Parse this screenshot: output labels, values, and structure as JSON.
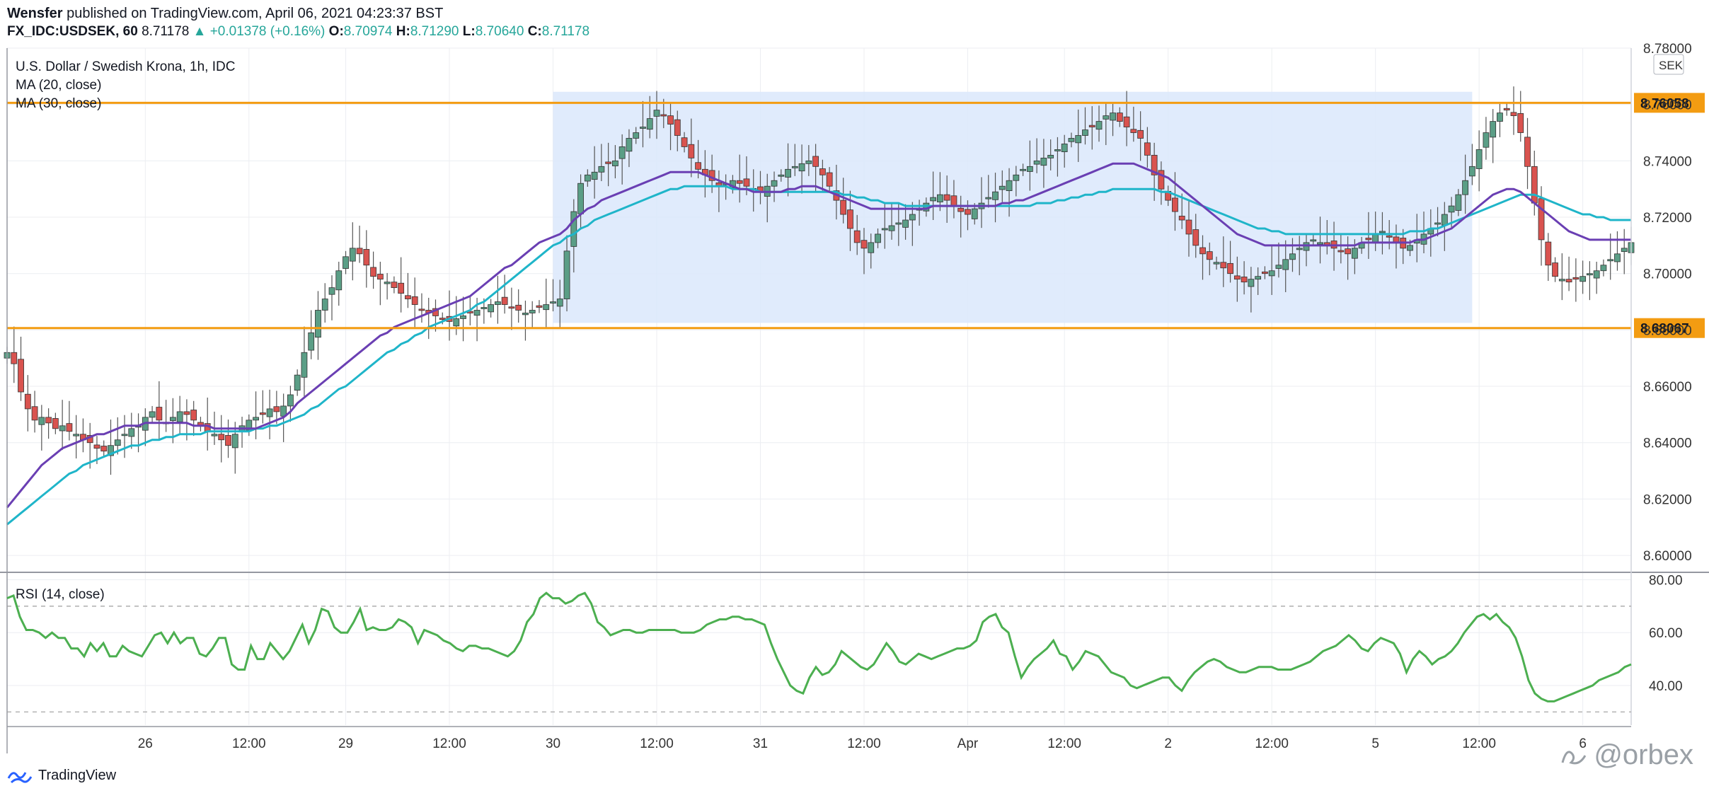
{
  "header": {
    "publisher": "Wensfer",
    "published_text": "published on TradingView.com, April 06, 2021 04:23:37 BST",
    "symbol": "FX_IDC:USDSEK, 60",
    "last": "8.71178",
    "change": "▲ +0.01378 (+0.16%)",
    "o_label": "O:",
    "o": "8.70974",
    "h_label": "H:",
    "h": "8.71290",
    "l_label": "L:",
    "l": "8.70640",
    "c_label": "C:",
    "c": "8.71178"
  },
  "footer": {
    "brand": "TradingView",
    "brand_icon": "tradingview-logo-icon",
    "watermark": "@orbex",
    "watermark_icon": "signature-icon"
  },
  "chart_data": [
    {
      "type": "candlestick",
      "title": "U.S. Dollar / Swedish Krona, 1h, IDC",
      "indicators": [
        "MA (20, close)",
        "MA (30, close)"
      ],
      "currency": "SEK",
      "ylim": [
        8.595,
        8.78
      ],
      "y_ticks": [
        "8.60000",
        "8.62000",
        "8.64000",
        "8.66000",
        "8.68000",
        "8.70000",
        "8.72000",
        "8.74000",
        "8.76000",
        "8.78000"
      ],
      "x_ticks": [
        "26",
        "12:00",
        "29",
        "12:00",
        "30",
        "12:00",
        "31",
        "12:00",
        "Apr",
        "12:00",
        "2",
        "12:00",
        "5",
        "12:00",
        "6"
      ],
      "horizontal_levels": [
        8.76058,
        8.68067
      ],
      "level_labels": [
        "8.76058",
        "8.68067"
      ],
      "range_box": {
        "x_start": 79,
        "x_end": 212,
        "y_low": 8.6825,
        "y_high": 8.7645
      },
      "close": [
        8.672,
        8.668,
        8.658,
        8.652,
        8.648,
        8.649,
        8.647,
        8.645,
        8.646,
        8.644,
        8.643,
        8.641,
        8.64,
        8.638,
        8.637,
        8.639,
        8.641,
        8.643,
        8.645,
        8.646,
        8.649,
        8.651,
        8.648,
        8.647,
        8.649,
        8.651,
        8.65,
        8.648,
        8.646,
        8.644,
        8.643,
        8.641,
        8.639,
        8.643,
        8.646,
        8.648,
        8.649,
        8.65,
        8.652,
        8.651,
        8.653,
        8.657,
        8.664,
        8.672,
        8.679,
        8.687,
        8.691,
        8.695,
        8.701,
        8.706,
        8.709,
        8.707,
        8.703,
        8.699,
        8.698,
        8.697,
        8.695,
        8.693,
        8.691,
        8.689,
        8.687,
        8.686,
        8.685,
        8.684,
        8.683,
        8.684,
        8.685,
        8.686,
        8.687,
        8.688,
        8.689,
        8.69,
        8.689,
        8.688,
        8.687,
        8.686,
        8.687,
        8.688,
        8.689,
        8.69,
        8.691,
        8.708,
        8.722,
        8.732,
        8.735,
        8.736,
        8.738,
        8.739,
        8.74,
        8.745,
        8.748,
        8.75,
        8.752,
        8.755,
        8.758,
        8.756,
        8.753,
        8.749,
        8.745,
        8.741,
        8.737,
        8.735,
        8.733,
        8.731,
        8.732,
        8.733,
        8.732,
        8.731,
        8.73,
        8.729,
        8.731,
        8.733,
        8.735,
        8.737,
        8.738,
        8.739,
        8.74,
        8.738,
        8.735,
        8.731,
        8.726,
        8.721,
        8.716,
        8.711,
        8.709,
        8.711,
        8.714,
        8.716,
        8.717,
        8.718,
        8.719,
        8.721,
        8.723,
        8.725,
        8.727,
        8.728,
        8.726,
        8.724,
        8.722,
        8.721,
        8.723,
        8.725,
        8.727,
        8.729,
        8.731,
        8.733,
        8.735,
        8.737,
        8.738,
        8.74,
        8.741,
        8.742,
        8.744,
        8.746,
        8.748,
        8.749,
        8.751,
        8.752,
        8.754,
        8.756,
        8.757,
        8.754,
        8.752,
        8.75,
        8.748,
        8.742,
        8.735,
        8.73,
        8.726,
        8.722,
        8.719,
        8.714,
        8.71,
        8.707,
        8.705,
        8.704,
        8.702,
        8.7,
        8.698,
        8.697,
        8.698,
        8.699,
        8.7,
        8.701,
        8.703,
        8.705,
        8.707,
        8.709,
        8.711,
        8.712,
        8.711,
        8.71,
        8.709,
        8.708,
        8.707,
        8.709,
        8.711,
        8.712,
        8.714,
        8.715,
        8.713,
        8.711,
        8.709,
        8.71,
        8.712,
        8.714,
        8.716,
        8.718,
        8.721,
        8.724,
        8.728,
        8.733,
        8.738,
        8.744,
        8.75,
        8.754,
        8.757,
        8.758,
        8.756,
        8.75,
        8.738,
        8.725,
        8.712,
        8.703,
        8.699,
        8.698,
        8.697,
        8.698,
        8.699,
        8.7,
        8.701,
        8.703,
        8.705,
        8.707,
        8.709,
        8.711
      ],
      "ma20": [
        8.617,
        8.62,
        8.623,
        8.626,
        8.629,
        8.632,
        8.634,
        8.636,
        8.638,
        8.639,
        8.64,
        8.641,
        8.642,
        8.643,
        8.643,
        8.644,
        8.645,
        8.646,
        8.646,
        8.646,
        8.647,
        8.647,
        8.647,
        8.647,
        8.647,
        8.647,
        8.647,
        8.646,
        8.646,
        8.646,
        8.645,
        8.645,
        8.645,
        8.645,
        8.645,
        8.645,
        8.645,
        8.646,
        8.647,
        8.648,
        8.649,
        8.651,
        8.654,
        8.656,
        8.658,
        8.66,
        8.662,
        8.664,
        8.666,
        8.668,
        8.67,
        8.672,
        8.674,
        8.676,
        8.678,
        8.679,
        8.681,
        8.682,
        8.683,
        8.684,
        8.685,
        8.686,
        8.687,
        8.688,
        8.689,
        8.69,
        8.691,
        8.692,
        8.694,
        8.696,
        8.698,
        8.7,
        8.702,
        8.703,
        8.705,
        8.707,
        8.709,
        8.711,
        8.712,
        8.713,
        8.714,
        8.716,
        8.719,
        8.721,
        8.723,
        8.724,
        8.726,
        8.727,
        8.728,
        8.729,
        8.73,
        8.731,
        8.732,
        8.733,
        8.734,
        8.735,
        8.736,
        8.736,
        8.736,
        8.736,
        8.736,
        8.735,
        8.734,
        8.733,
        8.732,
        8.731,
        8.73,
        8.73,
        8.729,
        8.729,
        8.729,
        8.729,
        8.729,
        8.73,
        8.73,
        8.731,
        8.731,
        8.731,
        8.73,
        8.729,
        8.728,
        8.727,
        8.726,
        8.725,
        8.724,
        8.723,
        8.723,
        8.723,
        8.723,
        8.723,
        8.723,
        8.723,
        8.723,
        8.723,
        8.724,
        8.724,
        8.724,
        8.724,
        8.724,
        8.724,
        8.724,
        8.724,
        8.724,
        8.724,
        8.725,
        8.725,
        8.726,
        8.726,
        8.727,
        8.728,
        8.729,
        8.73,
        8.731,
        8.732,
        8.733,
        8.734,
        8.735,
        8.736,
        8.737,
        8.738,
        8.739,
        8.739,
        8.739,
        8.739,
        8.738,
        8.737,
        8.736,
        8.735,
        8.734,
        8.732,
        8.73,
        8.728,
        8.726,
        8.724,
        8.722,
        8.72,
        8.718,
        8.716,
        8.714,
        8.713,
        8.712,
        8.711,
        8.71,
        8.71,
        8.71,
        8.71,
        8.71,
        8.71,
        8.71,
        8.71,
        8.71,
        8.71,
        8.71,
        8.71,
        8.71,
        8.71,
        8.711,
        8.711,
        8.711,
        8.711,
        8.711,
        8.711,
        8.711,
        8.711,
        8.712,
        8.712,
        8.713,
        8.714,
        8.715,
        8.716,
        8.718,
        8.72,
        8.722,
        8.724,
        8.726,
        8.728,
        8.729,
        8.73,
        8.73,
        8.729,
        8.727,
        8.725,
        8.723,
        8.721,
        8.719,
        8.717,
        8.715,
        8.714,
        8.713,
        8.712,
        8.712,
        8.712,
        8.712,
        8.712,
        8.712,
        8.712
      ],
      "ma30": [
        8.611,
        8.613,
        8.615,
        8.617,
        8.619,
        8.621,
        8.623,
        8.625,
        8.627,
        8.629,
        8.63,
        8.632,
        8.633,
        8.634,
        8.635,
        8.636,
        8.637,
        8.638,
        8.639,
        8.639,
        8.64,
        8.641,
        8.641,
        8.642,
        8.642,
        8.643,
        8.643,
        8.643,
        8.643,
        8.644,
        8.644,
        8.644,
        8.644,
        8.644,
        8.644,
        8.644,
        8.645,
        8.645,
        8.646,
        8.646,
        8.647,
        8.648,
        8.649,
        8.65,
        8.652,
        8.653,
        8.655,
        8.657,
        8.659,
        8.66,
        8.662,
        8.664,
        8.666,
        8.668,
        8.67,
        8.672,
        8.673,
        8.675,
        8.676,
        8.678,
        8.679,
        8.681,
        8.682,
        8.683,
        8.684,
        8.685,
        8.686,
        8.687,
        8.689,
        8.69,
        8.692,
        8.694,
        8.696,
        8.698,
        8.7,
        8.702,
        8.704,
        8.706,
        8.708,
        8.71,
        8.711,
        8.713,
        8.714,
        8.716,
        8.717,
        8.719,
        8.72,
        8.721,
        8.722,
        8.723,
        8.724,
        8.725,
        8.726,
        8.727,
        8.728,
        8.729,
        8.73,
        8.73,
        8.731,
        8.731,
        8.731,
        8.731,
        8.731,
        8.731,
        8.731,
        8.73,
        8.73,
        8.73,
        8.73,
        8.729,
        8.729,
        8.729,
        8.729,
        8.729,
        8.729,
        8.729,
        8.729,
        8.729,
        8.729,
        8.729,
        8.729,
        8.728,
        8.728,
        8.727,
        8.727,
        8.726,
        8.726,
        8.725,
        8.725,
        8.725,
        8.724,
        8.724,
        8.724,
        8.724,
        8.724,
        8.724,
        8.724,
        8.724,
        8.724,
        8.724,
        8.724,
        8.724,
        8.724,
        8.724,
        8.724,
        8.724,
        8.724,
        8.724,
        8.724,
        8.725,
        8.725,
        8.725,
        8.726,
        8.726,
        8.727,
        8.727,
        8.728,
        8.728,
        8.729,
        8.729,
        8.73,
        8.73,
        8.73,
        8.73,
        8.73,
        8.73,
        8.73,
        8.729,
        8.729,
        8.728,
        8.727,
        8.726,
        8.725,
        8.724,
        8.723,
        8.722,
        8.721,
        8.72,
        8.719,
        8.718,
        8.717,
        8.716,
        8.716,
        8.715,
        8.715,
        8.714,
        8.714,
        8.714,
        8.714,
        8.714,
        8.714,
        8.714,
        8.714,
        8.714,
        8.714,
        8.714,
        8.714,
        8.714,
        8.714,
        8.714,
        8.714,
        8.714,
        8.714,
        8.715,
        8.715,
        8.715,
        8.716,
        8.716,
        8.717,
        8.718,
        8.719,
        8.72,
        8.721,
        8.722,
        8.723,
        8.724,
        8.725,
        8.726,
        8.727,
        8.728,
        8.728,
        8.728,
        8.727,
        8.726,
        8.725,
        8.724,
        8.723,
        8.722,
        8.721,
        8.721,
        8.72,
        8.72,
        8.719,
        8.719,
        8.719,
        8.719
      ]
    },
    {
      "type": "line",
      "title": "RSI (14, close)",
      "ylim": [
        25,
        82
      ],
      "y_ticks": [
        "40.00",
        "60.00",
        "80.00"
      ],
      "bands": [
        70,
        30
      ],
      "values": [
        73,
        74,
        66,
        61,
        61,
        60,
        58,
        60,
        58,
        58,
        54,
        54,
        51,
        56,
        53,
        56,
        51,
        51,
        55,
        53,
        52,
        51,
        55,
        59,
        60,
        56,
        60,
        56,
        58,
        58,
        52,
        51,
        54,
        58,
        58,
        48,
        46,
        46,
        55,
        50,
        50,
        56,
        53,
        50,
        53,
        58,
        63,
        56,
        61,
        69,
        68,
        62,
        60,
        60,
        64,
        69,
        61,
        62,
        61,
        61,
        62,
        65,
        64,
        62,
        56,
        61,
        60,
        59,
        57,
        56,
        54,
        53,
        55,
        55,
        54,
        54,
        53,
        52,
        51,
        53,
        57,
        64,
        67,
        73,
        75,
        73,
        73,
        71,
        72,
        74,
        75,
        71,
        64,
        62,
        59,
        60,
        61,
        61,
        60,
        60,
        61,
        61,
        61,
        61,
        61,
        60,
        60,
        60,
        61,
        63,
        64,
        65,
        65,
        66,
        66,
        65,
        65,
        64,
        63,
        56,
        50,
        45,
        40,
        38,
        37,
        43,
        47,
        44,
        45,
        48,
        53,
        51,
        49,
        47,
        46,
        48,
        52,
        56,
        53,
        49,
        48,
        50,
        52,
        51,
        50,
        51,
        52,
        53,
        54,
        54,
        55,
        57,
        64,
        66,
        67,
        62,
        60,
        51,
        43,
        47,
        50,
        52,
        54,
        57,
        52,
        51,
        46,
        49,
        53,
        52,
        51,
        48,
        45,
        44,
        43,
        40,
        39,
        40,
        41,
        42,
        43,
        43,
        40,
        38,
        42,
        45,
        47,
        49,
        50,
        49,
        47,
        46,
        45,
        45,
        46,
        47,
        47,
        47,
        46,
        46,
        46,
        47,
        48,
        49,
        51,
        53,
        54,
        55,
        57,
        59,
        57,
        54,
        53,
        56,
        58,
        57,
        56,
        52,
        45,
        50,
        53,
        51,
        48,
        50,
        51,
        53,
        56,
        60,
        63,
        66,
        67,
        65,
        67,
        64,
        62,
        58,
        51,
        42,
        37,
        35,
        34,
        34,
        35,
        36,
        37,
        38,
        39,
        40,
        42,
        43,
        44,
        45,
        47,
        48
      ]
    }
  ]
}
